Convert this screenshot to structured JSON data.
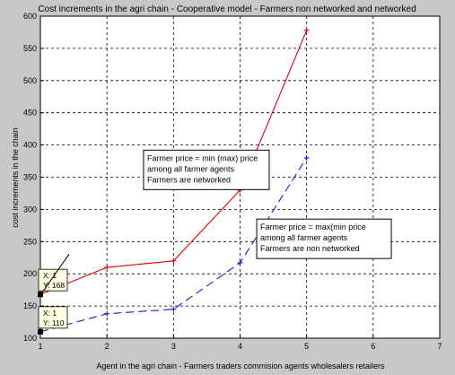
{
  "chart_data": {
    "type": "line",
    "title": "Cost increments in the agri chain - Cooperative model - Farmers non networked and networked",
    "xlabel": "Agent in the agri chain - Farmers traders commision agents wholesalers retailers",
    "ylabel": "cost increments in the chain",
    "xlim": [
      1,
      7
    ],
    "ylim": [
      100,
      600
    ],
    "xticks": [
      1,
      2,
      3,
      4,
      5,
      6,
      7
    ],
    "yticks": [
      100,
      150,
      200,
      250,
      300,
      350,
      400,
      450,
      500,
      550,
      600
    ],
    "grid": true,
    "series": [
      {
        "color": "#e00000",
        "style": "solid",
        "marker": "plus",
        "x": [
          1,
          2,
          3,
          4,
          5
        ],
        "y": [
          168,
          210,
          220,
          330,
          578
        ]
      },
      {
        "color": "#1a1ad8",
        "style": "dashed",
        "marker": "plus",
        "x": [
          1,
          2,
          3,
          4,
          5
        ],
        "y": [
          110,
          138,
          145,
          217,
          380
        ]
      }
    ],
    "annotations": [
      {
        "lines": [
          "Farmer price = min (max) price",
          "among all farmer agents",
          "Farmers are networked"
        ],
        "x": 2.55,
        "y": 392
      },
      {
        "lines": [
          "Farmer price = max(min price",
          "among all farmer agents",
          "Farmers are non networked"
        ],
        "x": 4.25,
        "y": 285
      }
    ],
    "datatips": [
      {
        "x_text": "X: 1",
        "y_text": "Y: 168",
        "x": 1,
        "y": 168
      },
      {
        "x_text": "X: 1",
        "y_text": "Y: 110",
        "x": 1,
        "y": 110
      }
    ]
  }
}
